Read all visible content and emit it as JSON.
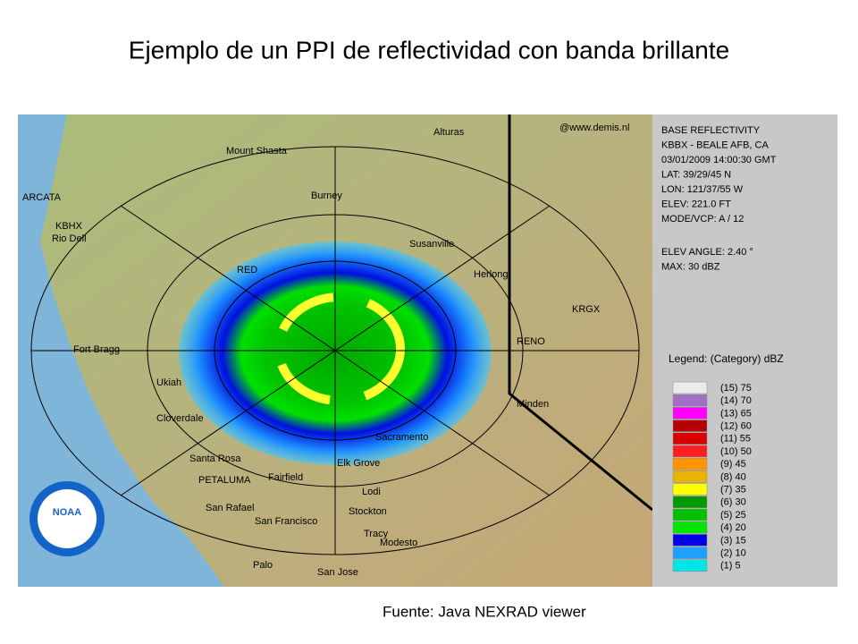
{
  "title": "Ejemplo de un PPI de reflectividad con banda brillante",
  "map": {
    "credit": "@www.demis.nl",
    "logo": "NOAA",
    "labels": [
      "Alturas",
      "Mount Shasta",
      "ARCATA",
      "KBHX",
      "Rio Dell",
      "Burney",
      "Susanville",
      "Herlong",
      "KRGX",
      "RED",
      "Fort Bragg",
      "RENO",
      "Ukiah",
      "Minden",
      "Cloverdale",
      "Sacramento",
      "Santa Rosa",
      "Fairfield",
      "Elk Grove",
      "PETALUMA",
      "Lodi",
      "San Rafael",
      "San Francisco",
      "Stockton",
      "Tracy",
      "Modesto",
      "Palo",
      "San Jose"
    ]
  },
  "panel": {
    "info": [
      "BASE REFLECTIVITY",
      "KBBX - BEALE AFB, CA",
      "03/01/2009 14:00:30 GMT",
      "LAT: 39/29/45 N",
      "LON: 121/37/55 W",
      "ELEV: 221.0 FT",
      "MODE/VCP: A / 12",
      "ELEV ANGLE: 2.40 °",
      "MAX: 30 dBZ"
    ],
    "legend_title": "Legend: (Category) dBZ",
    "legend": [
      {
        "label": "(15) 75",
        "color": "#ececec"
      },
      {
        "label": "(14) 70",
        "color": "#a070c8"
      },
      {
        "label": "(13) 65",
        "color": "#ff00ff"
      },
      {
        "label": "(12) 60",
        "color": "#b40000"
      },
      {
        "label": "(11) 55",
        "color": "#d80000"
      },
      {
        "label": "(10) 50",
        "color": "#ff1e1e"
      },
      {
        "label": "(9) 45",
        "color": "#ff9400"
      },
      {
        "label": "(8) 40",
        "color": "#e8b400"
      },
      {
        "label": "(7) 35",
        "color": "#ffff00"
      },
      {
        "label": "(6) 30",
        "color": "#009a00"
      },
      {
        "label": "(5) 25",
        "color": "#00c000"
      },
      {
        "label": "(4) 20",
        "color": "#00e600"
      },
      {
        "label": "(3) 15",
        "color": "#0000e6"
      },
      {
        "label": "(2) 10",
        "color": "#1ea0ff"
      },
      {
        "label": "(1) 5",
        "color": "#00e6e6"
      }
    ]
  },
  "source": "Fuente: Java NEXRAD viewer"
}
